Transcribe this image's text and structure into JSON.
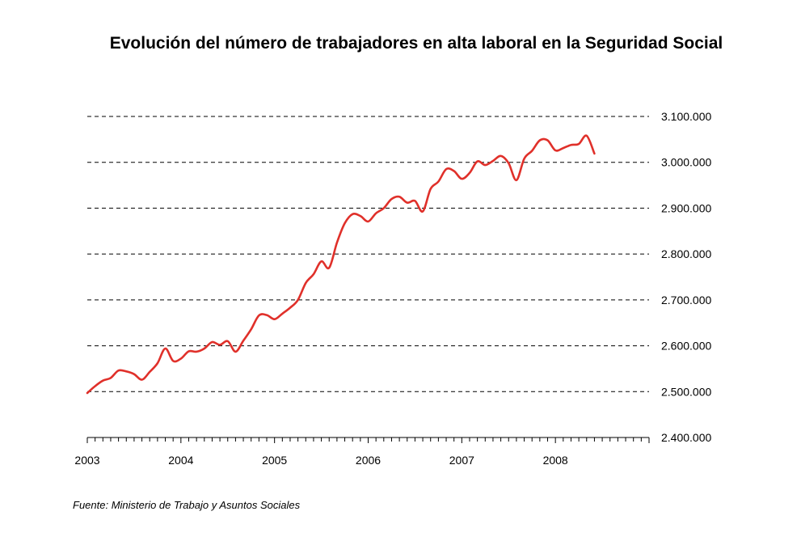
{
  "chart_data": {
    "type": "line",
    "title": "Evolución del número de trabajadores en alta laboral en la Seguridad Social",
    "xlabel": "",
    "ylabel": "",
    "source": "Fuente: Ministerio de Trabajo y Asuntos Sociales",
    "ylim": [
      2400000,
      3100000
    ],
    "yticks": [
      2400000,
      2500000,
      2600000,
      2700000,
      2800000,
      2900000,
      3000000,
      3100000
    ],
    "ytick_labels": [
      "2.400.000",
      "2.500.000",
      "2.600.000",
      "2.700.000",
      "2.800.000",
      "2.900.000",
      "3.000.000",
      "3.100.000"
    ],
    "x_year_labels": [
      "2003",
      "2004",
      "2005",
      "2006",
      "2007",
      "2008"
    ],
    "x_range_months": 72,
    "y_axis_side": "right",
    "grid": "horizontal dashed",
    "line_color": "#e0302a",
    "series": [
      {
        "name": "",
        "points": [
          [
            "2003-01",
            2497000
          ],
          [
            "2003-02",
            2512000
          ],
          [
            "2003-03",
            2524000
          ],
          [
            "2003-04",
            2530000
          ],
          [
            "2003-05",
            2546000
          ],
          [
            "2003-06",
            2544000
          ],
          [
            "2003-07",
            2538000
          ],
          [
            "2003-08",
            2526000
          ],
          [
            "2003-09",
            2543000
          ],
          [
            "2003-10",
            2562000
          ],
          [
            "2003-11",
            2594000
          ],
          [
            "2003-12",
            2567000
          ],
          [
            "2004-01",
            2572000
          ],
          [
            "2004-02",
            2588000
          ],
          [
            "2004-03",
            2587000
          ],
          [
            "2004-04",
            2594000
          ],
          [
            "2004-05",
            2608000
          ],
          [
            "2004-06",
            2602000
          ],
          [
            "2004-07",
            2610000
          ],
          [
            "2004-08",
            2587000
          ],
          [
            "2004-09",
            2611000
          ],
          [
            "2004-10",
            2636000
          ],
          [
            "2004-11",
            2666000
          ],
          [
            "2004-12",
            2667000
          ],
          [
            "2005-01",
            2658000
          ],
          [
            "2005-02",
            2670000
          ],
          [
            "2005-03",
            2683000
          ],
          [
            "2005-04",
            2700000
          ],
          [
            "2005-05",
            2737000
          ],
          [
            "2005-06",
            2756000
          ],
          [
            "2005-07",
            2784000
          ],
          [
            "2005-08",
            2770000
          ],
          [
            "2005-09",
            2825000
          ],
          [
            "2005-10",
            2867000
          ],
          [
            "2005-11",
            2887000
          ],
          [
            "2005-12",
            2883000
          ],
          [
            "2006-01",
            2871000
          ],
          [
            "2006-02",
            2889000
          ],
          [
            "2006-03",
            2900000
          ],
          [
            "2006-04",
            2920000
          ],
          [
            "2006-05",
            2925000
          ],
          [
            "2006-06",
            2912000
          ],
          [
            "2006-07",
            2916000
          ],
          [
            "2006-08",
            2893000
          ],
          [
            "2006-09",
            2942000
          ],
          [
            "2006-10",
            2958000
          ],
          [
            "2006-11",
            2985000
          ],
          [
            "2006-12",
            2981000
          ],
          [
            "2007-01",
            2964000
          ],
          [
            "2007-02",
            2977000
          ],
          [
            "2007-03",
            3002000
          ],
          [
            "2007-04",
            2994000
          ],
          [
            "2007-05",
            3003000
          ],
          [
            "2007-06",
            3014000
          ],
          [
            "2007-07",
            2998000
          ],
          [
            "2007-08",
            2961000
          ],
          [
            "2007-09",
            3008000
          ],
          [
            "2007-10",
            3025000
          ],
          [
            "2007-11",
            3048000
          ],
          [
            "2007-12",
            3048000
          ],
          [
            "2008-01",
            3026000
          ],
          [
            "2008-02",
            3031000
          ],
          [
            "2008-03",
            3038000
          ],
          [
            "2008-04",
            3040000
          ],
          [
            "2008-05",
            3058000
          ],
          [
            "2008-06",
            3019000
          ]
        ]
      }
    ]
  }
}
